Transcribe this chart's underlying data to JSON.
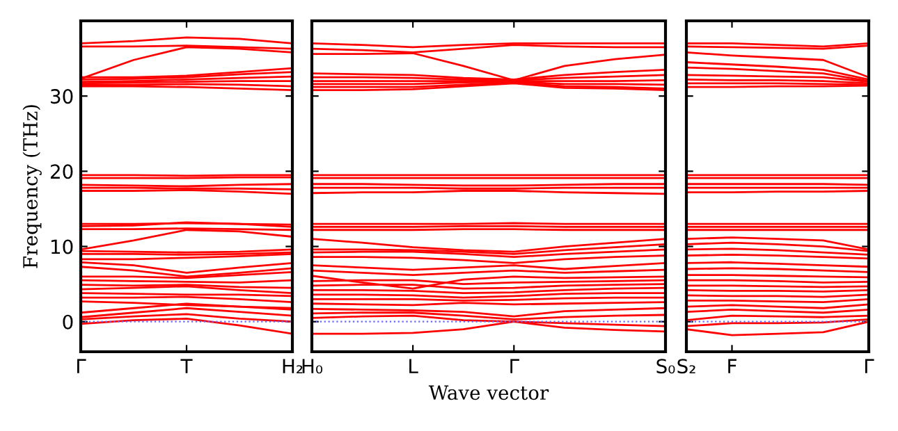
{
  "chart_data": [
    {
      "type": "line",
      "color": "#ff0000",
      "ylabel": "Frequency (THz)",
      "ylim": [
        -4,
        40
      ],
      "yticks": [
        0,
        10,
        20,
        30
      ],
      "categories": [
        "Γ",
        null,
        "T",
        null,
        "H₂"
      ],
      "ref_lines": [
        {
          "axis": "y",
          "value": 0,
          "color": "#6666ff",
          "line_style": "dotted"
        }
      ],
      "series": [
        {
          "values": [
            37.0,
            37.3,
            37.8,
            37.6,
            37.0
          ]
        },
        {
          "values": [
            36.6,
            36.6,
            36.7,
            36.5,
            36.3
          ]
        },
        {
          "values": [
            32.3,
            34.8,
            36.5,
            36.3,
            35.8
          ]
        },
        {
          "values": [
            32.5,
            32.5,
            32.7,
            33.2,
            33.7
          ]
        },
        {
          "values": [
            32.2,
            32.3,
            32.5,
            32.9,
            33.2
          ]
        },
        {
          "values": [
            31.9,
            32.0,
            32.2,
            32.4,
            32.6
          ]
        },
        {
          "values": [
            31.7,
            31.8,
            31.9,
            32.0,
            32.0
          ]
        },
        {
          "values": [
            31.5,
            31.5,
            31.6,
            31.5,
            31.3
          ]
        },
        {
          "values": [
            31.3,
            31.3,
            31.2,
            31.0,
            30.8
          ]
        },
        {
          "values": [
            19.5,
            19.5,
            19.4,
            19.5,
            19.5
          ]
        },
        {
          "values": [
            19.1,
            19.1,
            19.1,
            19.2,
            19.2
          ]
        },
        {
          "values": [
            18.2,
            18.1,
            18.0,
            18.2,
            18.3
          ]
        },
        {
          "values": [
            17.8,
            17.8,
            17.7,
            17.7,
            17.6
          ]
        },
        {
          "values": [
            17.4,
            17.4,
            17.5,
            17.3,
            17.0
          ]
        },
        {
          "values": [
            13.0,
            13.0,
            13.1,
            13.0,
            12.9
          ]
        },
        {
          "values": [
            12.7,
            12.8,
            13.2,
            13.0,
            12.6
          ]
        },
        {
          "values": [
            12.3,
            12.3,
            12.4,
            12.3,
            12.2
          ]
        },
        {
          "values": [
            9.6,
            10.8,
            12.2,
            12.0,
            11.3
          ]
        },
        {
          "values": [
            9.4,
            9.3,
            9.2,
            9.3,
            9.6
          ]
        },
        {
          "values": [
            9.0,
            9.0,
            8.9,
            9.0,
            9.2
          ]
        },
        {
          "values": [
            8.3,
            8.3,
            8.5,
            8.7,
            9.0
          ]
        },
        {
          "values": [
            7.9,
            7.5,
            6.5,
            7.2,
            7.8
          ]
        },
        {
          "values": [
            7.3,
            6.8,
            6.0,
            6.5,
            7.1
          ]
        },
        {
          "values": [
            6.0,
            6.0,
            5.8,
            6.2,
            6.6
          ]
        },
        {
          "values": [
            5.5,
            5.4,
            5.3,
            5.2,
            5.5
          ]
        },
        {
          "values": [
            4.9,
            4.8,
            4.9,
            4.6,
            4.5
          ]
        },
        {
          "values": [
            4.3,
            4.5,
            4.7,
            4.2,
            3.8
          ]
        },
        {
          "values": [
            3.8,
            3.7,
            3.6,
            3.6,
            3.4
          ]
        },
        {
          "values": [
            3.2,
            3.2,
            3.3,
            3.0,
            2.6
          ]
        },
        {
          "values": [
            2.7,
            2.5,
            2.2,
            2.0,
            1.8
          ]
        },
        {
          "values": [
            1.2,
            1.8,
            2.4,
            2.0,
            1.6
          ]
        },
        {
          "values": [
            0.6,
            1.2,
            1.8,
            1.3,
            0.8
          ]
        },
        {
          "values": [
            0.3,
            0.7,
            1.0,
            0.4,
            0.0
          ]
        },
        {
          "values": [
            -0.3,
            0.2,
            0.4,
            -0.5,
            -1.6
          ]
        }
      ]
    },
    {
      "type": "line",
      "color": "#ff0000",
      "xlabel": "Wave vector",
      "tick_labels": "x",
      "ylim": [
        -4,
        40
      ],
      "yticks": [
        0,
        10,
        20,
        30
      ],
      "categories": [
        "H₀",
        null,
        "L",
        null,
        "Γ",
        null,
        null,
        "S₀"
      ],
      "ref_lines": [
        {
          "axis": "y",
          "value": 0,
          "color": "#6666ff",
          "line_style": "dotted"
        }
      ],
      "series": [
        {
          "values": [
            37.0,
            36.8,
            36.5,
            36.8,
            37.0,
            37.0,
            37.0,
            37.0
          ]
        },
        {
          "values": [
            35.6,
            35.6,
            35.7,
            34.0,
            32.1,
            34.0,
            34.9,
            35.5
          ]
        },
        {
          "values": [
            36.3,
            36.1,
            35.8,
            36.3,
            36.8,
            36.6,
            36.5,
            36.5
          ]
        },
        {
          "values": [
            33.0,
            32.9,
            32.8,
            32.4,
            32.2,
            32.8,
            33.2,
            33.5
          ]
        },
        {
          "values": [
            32.5,
            32.5,
            32.4,
            32.2,
            32.1,
            32.4,
            32.6,
            32.8
          ]
        },
        {
          "values": [
            32.0,
            32.0,
            32.0,
            32.0,
            32.0,
            32.0,
            32.0,
            32.1
          ]
        },
        {
          "values": [
            31.6,
            31.6,
            31.6,
            31.8,
            31.9,
            31.6,
            31.6,
            31.5
          ]
        },
        {
          "values": [
            31.2,
            31.2,
            31.2,
            31.5,
            31.8,
            31.3,
            31.2,
            31.0
          ]
        },
        {
          "values": [
            30.8,
            30.8,
            30.9,
            31.3,
            31.7,
            31.1,
            31.0,
            30.8
          ]
        },
        {
          "values": [
            19.5,
            19.5,
            19.5,
            19.5,
            19.5,
            19.5,
            19.5,
            19.5
          ]
        },
        {
          "values": [
            19.1,
            19.1,
            19.1,
            19.1,
            19.1,
            19.1,
            19.1,
            19.1
          ]
        },
        {
          "values": [
            18.3,
            18.3,
            18.2,
            18.1,
            18.1,
            18.2,
            18.3,
            18.3
          ]
        },
        {
          "values": [
            17.8,
            17.8,
            17.8,
            17.7,
            17.7,
            17.8,
            17.8,
            17.8
          ]
        },
        {
          "values": [
            17.1,
            17.2,
            17.2,
            17.4,
            17.4,
            17.2,
            17.1,
            17.0
          ]
        },
        {
          "values": [
            13.0,
            13.0,
            13.0,
            13.0,
            13.1,
            13.0,
            13.0,
            13.0
          ]
        },
        {
          "values": [
            12.6,
            12.6,
            12.6,
            12.7,
            12.7,
            12.6,
            12.6,
            12.6
          ]
        },
        {
          "values": [
            12.2,
            12.2,
            12.2,
            12.3,
            12.3,
            12.2,
            12.2,
            12.2
          ]
        },
        {
          "values": [
            11.0,
            10.5,
            9.9,
            9.5,
            9.3,
            10.0,
            10.5,
            11.0
          ]
        },
        {
          "values": [
            9.6,
            9.6,
            9.5,
            9.3,
            9.0,
            9.5,
            9.9,
            10.3
          ]
        },
        {
          "values": [
            9.2,
            9.3,
            9.3,
            9.0,
            8.6,
            9.0,
            9.3,
            9.6
          ]
        },
        {
          "values": [
            8.6,
            8.6,
            8.5,
            8.2,
            7.8,
            8.3,
            8.6,
            8.8
          ]
        },
        {
          "values": [
            7.5,
            7.2,
            6.9,
            7.2,
            7.5,
            7.0,
            7.4,
            7.8
          ]
        },
        {
          "values": [
            6.8,
            6.5,
            6.2,
            6.5,
            6.8,
            6.5,
            6.7,
            6.9
          ]
        },
        {
          "values": [
            6.1,
            5.2,
            4.4,
            5.6,
            6.0,
            5.8,
            5.9,
            6.0
          ]
        },
        {
          "values": [
            5.4,
            5.5,
            5.5,
            5.0,
            5.2,
            5.3,
            5.4,
            5.5
          ]
        },
        {
          "values": [
            4.8,
            4.9,
            4.9,
            4.4,
            4.5,
            4.8,
            4.9,
            5.0
          ]
        },
        {
          "values": [
            4.2,
            4.2,
            4.1,
            3.8,
            3.9,
            4.2,
            4.4,
            4.5
          ]
        },
        {
          "values": [
            3.6,
            3.6,
            3.5,
            3.2,
            3.4,
            3.7,
            3.8,
            3.8
          ]
        },
        {
          "values": [
            3.0,
            3.0,
            3.0,
            2.8,
            2.9,
            3.1,
            3.2,
            3.2
          ]
        },
        {
          "values": [
            2.4,
            2.3,
            2.2,
            2.5,
            2.3,
            2.4,
            2.5,
            2.6
          ]
        },
        {
          "values": [
            1.7,
            1.6,
            1.5,
            1.3,
            0.7,
            1.4,
            1.6,
            1.8
          ]
        },
        {
          "values": [
            1.1,
            1.2,
            1.2,
            0.8,
            0.3,
            0.6,
            0.8,
            0.9
          ]
        },
        {
          "values": [
            0.5,
            0.7,
            0.8,
            0.2,
            0.0,
            -0.2,
            -0.4,
            -0.6
          ]
        },
        {
          "values": [
            -1.6,
            -1.6,
            -1.5,
            -1.0,
            0.0,
            -0.8,
            -1.1,
            -1.3
          ]
        }
      ]
    },
    {
      "type": "line",
      "color": "#ff0000",
      "tick_labels": "x",
      "ylim": [
        -4,
        40
      ],
      "yticks": [
        0,
        10,
        20,
        30
      ],
      "categories": [
        "S₂",
        "F",
        null,
        null,
        "Γ"
      ],
      "ref_lines": [
        {
          "axis": "y",
          "value": 0,
          "color": "#6666ff",
          "line_style": "dotted"
        }
      ],
      "series": [
        {
          "values": [
            37.0,
            37.0,
            36.8,
            36.6,
            37.0
          ]
        },
        {
          "values": [
            36.6,
            36.5,
            36.4,
            36.3,
            36.7
          ]
        },
        {
          "values": [
            35.8,
            35.4,
            35.1,
            34.8,
            32.5
          ]
        },
        {
          "values": [
            34.5,
            34.2,
            33.9,
            33.5,
            32.2
          ]
        },
        {
          "values": [
            33.8,
            33.6,
            33.3,
            33.0,
            32.0
          ]
        },
        {
          "values": [
            32.8,
            32.7,
            32.6,
            32.5,
            31.9
          ]
        },
        {
          "values": [
            32.2,
            32.1,
            32.1,
            32.0,
            31.7
          ]
        },
        {
          "values": [
            31.7,
            31.7,
            31.7,
            31.6,
            31.5
          ]
        },
        {
          "values": [
            31.2,
            31.2,
            31.3,
            31.3,
            31.4
          ]
        },
        {
          "values": [
            19.5,
            19.5,
            19.5,
            19.5,
            19.5
          ]
        },
        {
          "values": [
            19.1,
            19.1,
            19.1,
            19.1,
            19.1
          ]
        },
        {
          "values": [
            18.3,
            18.3,
            18.3,
            18.3,
            18.2
          ]
        },
        {
          "values": [
            17.8,
            17.8,
            17.8,
            17.8,
            17.8
          ]
        },
        {
          "values": [
            17.2,
            17.2,
            17.3,
            17.3,
            17.4
          ]
        },
        {
          "values": [
            13.0,
            13.0,
            13.0,
            13.0,
            13.0
          ]
        },
        {
          "values": [
            12.6,
            12.6,
            12.6,
            12.6,
            12.6
          ]
        },
        {
          "values": [
            12.2,
            12.2,
            12.2,
            12.2,
            12.2
          ]
        },
        {
          "values": [
            11.0,
            11.2,
            11.0,
            10.8,
            9.6
          ]
        },
        {
          "values": [
            10.3,
            10.5,
            10.3,
            10.0,
            9.4
          ]
        },
        {
          "values": [
            9.6,
            9.7,
            9.5,
            9.2,
            8.9
          ]
        },
        {
          "values": [
            8.8,
            8.9,
            8.8,
            8.6,
            8.4
          ]
        },
        {
          "values": [
            7.8,
            7.9,
            7.7,
            7.5,
            7.3
          ]
        },
        {
          "values": [
            7.0,
            7.1,
            7.0,
            6.8,
            6.6
          ]
        },
        {
          "values": [
            6.2,
            6.2,
            6.1,
            6.0,
            5.9
          ]
        },
        {
          "values": [
            5.5,
            5.5,
            5.4,
            5.2,
            5.3
          ]
        },
        {
          "values": [
            4.8,
            4.8,
            4.7,
            4.6,
            4.7
          ]
        },
        {
          "values": [
            4.2,
            4.1,
            4.1,
            4.0,
            4.2
          ]
        },
        {
          "values": [
            3.5,
            3.4,
            3.4,
            3.3,
            3.6
          ]
        },
        {
          "values": [
            2.8,
            2.8,
            2.7,
            2.6,
            3.0
          ]
        },
        {
          "values": [
            2.0,
            2.2,
            2.0,
            1.8,
            2.3
          ]
        },
        {
          "values": [
            1.3,
            1.6,
            1.4,
            1.2,
            1.6
          ]
        },
        {
          "values": [
            0.2,
            0.8,
            0.7,
            0.6,
            0.8
          ]
        },
        {
          "values": [
            -0.6,
            -0.2,
            -0.2,
            -0.1,
            0.3
          ]
        },
        {
          "values": [
            -1.0,
            -1.8,
            -1.6,
            -1.4,
            0.0
          ]
        }
      ]
    }
  ]
}
